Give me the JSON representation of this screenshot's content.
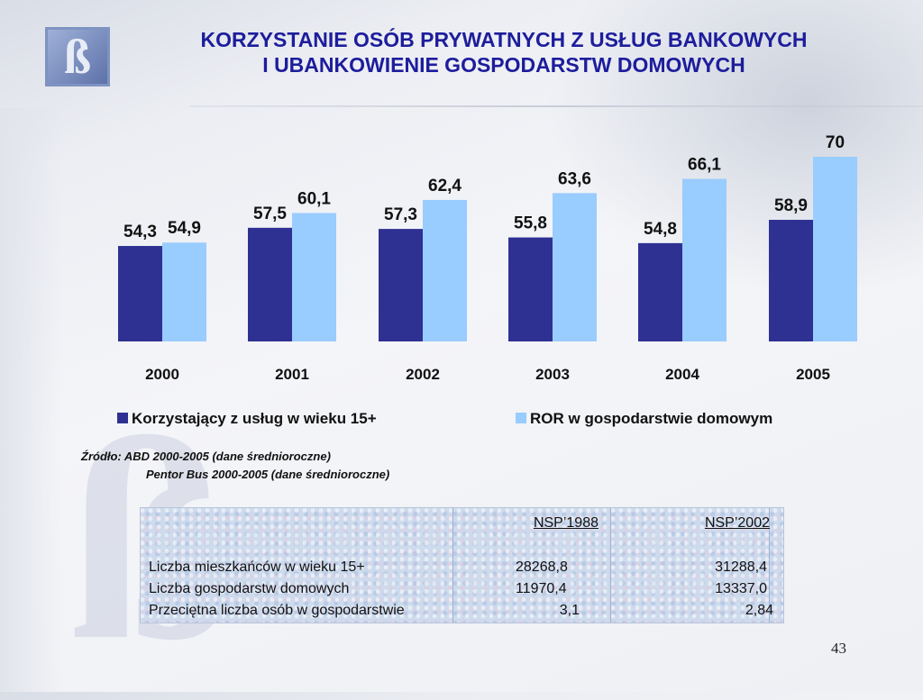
{
  "title": {
    "line1": "KORZYSTANIE OSÓB PRYWATNYCH Z USŁUG BANKOWYCH",
    "line2": "I UBANKOWIENIE GOSPODARSTW DOMOWYCH"
  },
  "colors": {
    "title": "#1d1d9c",
    "series1": "#2e3192",
    "series2": "#99ccff"
  },
  "chart_data": {
    "type": "bar",
    "title": "",
    "xlabel": "",
    "ylabel": "",
    "categories": [
      "2000",
      "2001",
      "2002",
      "2003",
      "2004",
      "2005"
    ],
    "series": [
      {
        "name": "Korzystający z usług w wieku 15+",
        "values": [
          54.3,
          57.5,
          57.3,
          55.8,
          54.8,
          58.9
        ],
        "labels": [
          "54,3",
          "57,5",
          "57,3",
          "55,8",
          "54,8",
          "58,9"
        ],
        "color": "#2e3192"
      },
      {
        "name": "ROR w gospodarstwie domowym",
        "values": [
          54.9,
          60.1,
          62.4,
          63.6,
          66.1,
          70
        ],
        "labels": [
          "54,9",
          "60,1",
          "62,4",
          "63,6",
          "66,1",
          "70"
        ],
        "color": "#99ccff"
      }
    ],
    "ylim": [
      0,
      75
    ],
    "grid": false,
    "legend": "bottom"
  },
  "source": {
    "line1": "Źródło: ABD 2000-2005 (dane średnioroczne)",
    "line2": "Pentor Bus 2000-2005 (dane średnioroczne)"
  },
  "table": {
    "headers": [
      "",
      "NSP’1988",
      "NSP’2002"
    ],
    "rows": [
      [
        "Liczba mieszkańców w wieku 15+",
        "28268,8",
        "31288,4"
      ],
      [
        "Liczba gospodarstw domowych",
        "11970,4",
        "13337,0"
      ],
      [
        "Przeciętna liczba osób w gospodarstwie",
        "3,1",
        "2,84"
      ]
    ]
  },
  "page_number": "43"
}
